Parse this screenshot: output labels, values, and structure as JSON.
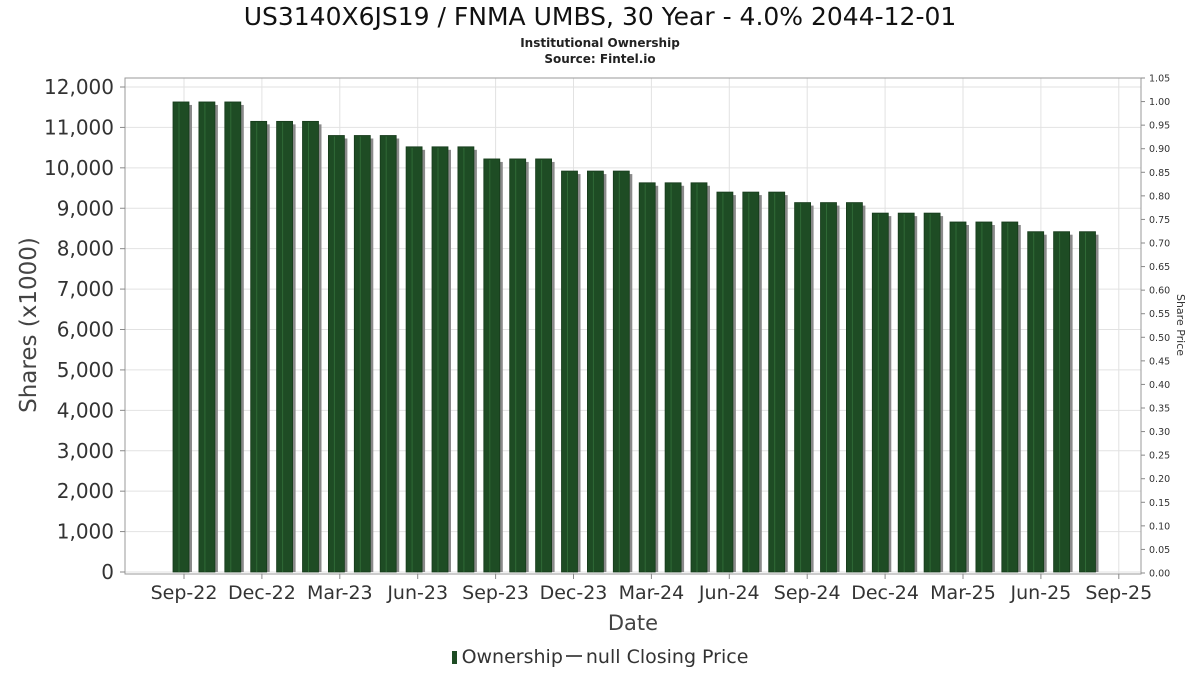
{
  "chart_data": {
    "type": "bar",
    "title": "US3140X6JS19 / FNMA UMBS, 30 Year - 4.0% 2044-12-01",
    "subtitle": "Institutional Ownership",
    "source": "Source: Fintel.io",
    "xlabel": "Date",
    "ylabel": "Shares (x1000)",
    "y2label": "Share Price",
    "ylim": [
      0,
      12000
    ],
    "y2lim": [
      0,
      1.05
    ],
    "yticks": [
      "0",
      "1,000",
      "2,000",
      "3,000",
      "4,000",
      "5,000",
      "6,000",
      "7,000",
      "8,000",
      "9,000",
      "10,000",
      "11,000",
      "12,000"
    ],
    "y2ticks": [
      "0.00",
      "0.05",
      "0.10",
      "0.15",
      "0.20",
      "0.25",
      "0.30",
      "0.35",
      "0.40",
      "0.45",
      "0.50",
      "0.55",
      "0.60",
      "0.65",
      "0.70",
      "0.75",
      "0.80",
      "0.85",
      "0.90",
      "0.95",
      "1.00",
      "1.05"
    ],
    "xticks": [
      "Sep-22",
      "Dec-22",
      "Mar-23",
      "Jun-23",
      "Sep-23",
      "Dec-23",
      "Mar-24",
      "Jun-24",
      "Sep-24",
      "Dec-24",
      "Mar-25",
      "Jun-25",
      "Sep-25"
    ],
    "grid": true,
    "legend_position": "bottom",
    "series": [
      {
        "name": "Ownership",
        "color": "#1e4c24",
        "values": [
          11630,
          11630,
          11630,
          11150,
          11150,
          11150,
          10800,
          10800,
          10800,
          10520,
          10520,
          10520,
          10220,
          10220,
          10220,
          9920,
          9920,
          9920,
          9630,
          9630,
          9630,
          9400,
          9400,
          9400,
          9140,
          9140,
          9140,
          8880,
          8880,
          8880,
          8660,
          8660,
          8660,
          8420,
          8420,
          8420
        ]
      },
      {
        "name": "null Closing Price",
        "color": "#555555",
        "values": []
      }
    ]
  }
}
